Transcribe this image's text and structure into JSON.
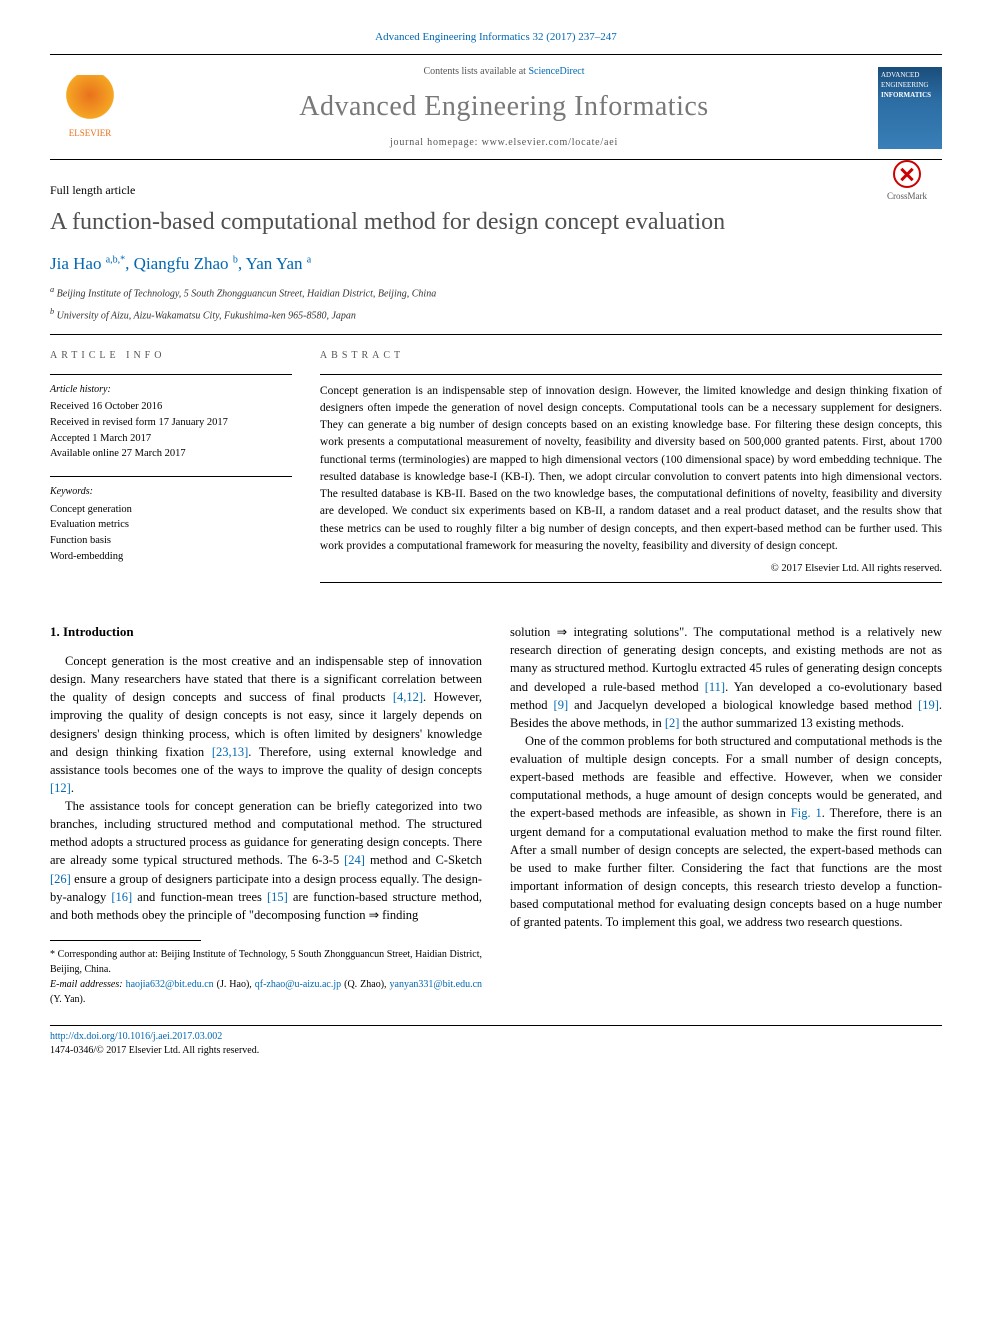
{
  "citation": "Advanced Engineering Informatics 32 (2017) 237–247",
  "masthead": {
    "contents_prefix": "Contents lists available at ",
    "contents_link": "ScienceDirect",
    "journal": "Advanced Engineering Informatics",
    "homepage_prefix": "journal homepage: ",
    "homepage": "www.elsevier.com/locate/aei",
    "publisher": "ELSEVIER",
    "cover_line1": "ADVANCED ENGINEERING",
    "cover_line2": "INFORMATICS"
  },
  "article_type": "Full length article",
  "title": "A function-based computational method for design concept evaluation",
  "crossmark": "CrossMark",
  "authors_html": "Jia Hao <sup>a,b,*</sup>, Qiangfu Zhao <sup>b</sup>, Yan Yan <sup>a</sup>",
  "affiliations": {
    "a": "Beijing Institute of Technology, 5 South Zhongguancun Street, Haidian District, Beijing, China",
    "b": "University of Aizu, Aizu-Wakamatsu City, Fukushima-ken 965-8580, Japan"
  },
  "info": {
    "label": "ARTICLE INFO",
    "history_label": "Article history:",
    "history": [
      "Received 16 October 2016",
      "Received in revised form 17 January 2017",
      "Accepted 1 March 2017",
      "Available online 27 March 2017"
    ],
    "keywords_label": "Keywords:",
    "keywords": [
      "Concept generation",
      "Evaluation metrics",
      "Function basis",
      "Word-embedding"
    ]
  },
  "abstract": {
    "label": "ABSTRACT",
    "text": "Concept generation is an indispensable step of innovation design. However, the limited knowledge and design thinking fixation of designers often impede the generation of novel design concepts. Computational tools can be a necessary supplement for designers. They can generate a big number of design concepts based on an existing knowledge base. For filtering these design concepts, this work presents a computational measurement of novelty, feasibility and diversity based on 500,000 granted patents. First, about 1700 functional terms (terminologies) are mapped to high dimensional vectors (100 dimensional space) by word embedding technique. The resulted database is knowledge base-I (KB-I). Then, we adopt circular convolution to convert patents into high dimensional vectors. The resulted database is KB-II. Based on the two knowledge bases, the computational definitions of novelty, feasibility and diversity are developed. We conduct six experiments based on KB-II, a random dataset and a real product dataset, and the results show that these metrics can be used to roughly filter a big number of design concepts, and then expert-based method can be further used. This work provides a computational framework for measuring the novelty, feasibility and diversity of design concept.",
    "copyright": "© 2017 Elsevier Ltd. All rights reserved."
  },
  "body": {
    "heading1": "1. Introduction",
    "p1": "Concept generation is the most creative and an indispensable step of innovation design. Many researchers have stated that there is a significant correlation between the quality of design concepts and success of final products [4,12]. However, improving the quality of design concepts is not easy, since it largely depends on designers' design thinking process, which is often limited by designers' knowledge and design thinking fixation [23,13]. Therefore, using external knowledge and assistance tools becomes one of the ways to improve the quality of design concepts [12].",
    "p2": "The assistance tools for concept generation can be briefly categorized into two branches, including structured method and computational method. The structured method adopts a structured process as guidance for generating design concepts. There are already some typical structured methods. The 6-3-5 [24] method and C-Sketch [26] ensure a group of designers participate into a design process equally. The design-by-analogy [16] and function-mean trees [15] are function-based structure method, and both methods obey the principle of \"decomposing function ⇒ finding",
    "p3": "solution ⇒ integrating solutions\". The computational method is a relatively new research direction of generating design concepts, and existing methods are not as many as structured method. Kurtoglu extracted 45 rules of generating design concepts and developed a rule-based method [11]. Yan developed a co-evolutionary based method [9] and Jacquelyn developed a biological knowledge based method [19]. Besides the above methods, in [2] the author summarized 13 existing methods.",
    "p4": "One of the common problems for both structured and computational methods is the evaluation of multiple design concepts. For a small number of design concepts, expert-based methods are feasible and effective. However, when we consider computational methods, a huge amount of design concepts would be generated, and the expert-based methods are infeasible, as shown in Fig. 1. Therefore, there is an urgent demand for a computational evaluation method to make the first round filter. After a small number of design concepts are selected, the expert-based methods can be used to make further filter. Considering the fact that functions are the most important information of design concepts, this research triesto develop a function-based computational method for evaluating design concepts based on a huge number of granted patents. To implement this goal, we address two research questions."
  },
  "footnotes": {
    "corr": "* Corresponding author at: Beijing Institute of Technology, 5 South Zhongguancun Street, Haidian District, Beijing, China.",
    "email_label": "E-mail addresses: ",
    "emails": [
      {
        "addr": "haojia632@bit.edu.cn",
        "who": "(J. Hao)"
      },
      {
        "addr": "qf-zhao@u-aizu.ac.jp",
        "who": "(Q. Zhao)"
      },
      {
        "addr": "yanyan331@bit.edu.cn",
        "who": "(Y. Yan)"
      }
    ]
  },
  "doi": {
    "url": "http://dx.doi.org/10.1016/j.aei.2017.03.002",
    "issn_line": "1474-0346/© 2017 Elsevier Ltd. All rights reserved."
  },
  "colors": {
    "link": "#0068b3",
    "title_gray": "#505050",
    "orange": "#e9711c"
  }
}
